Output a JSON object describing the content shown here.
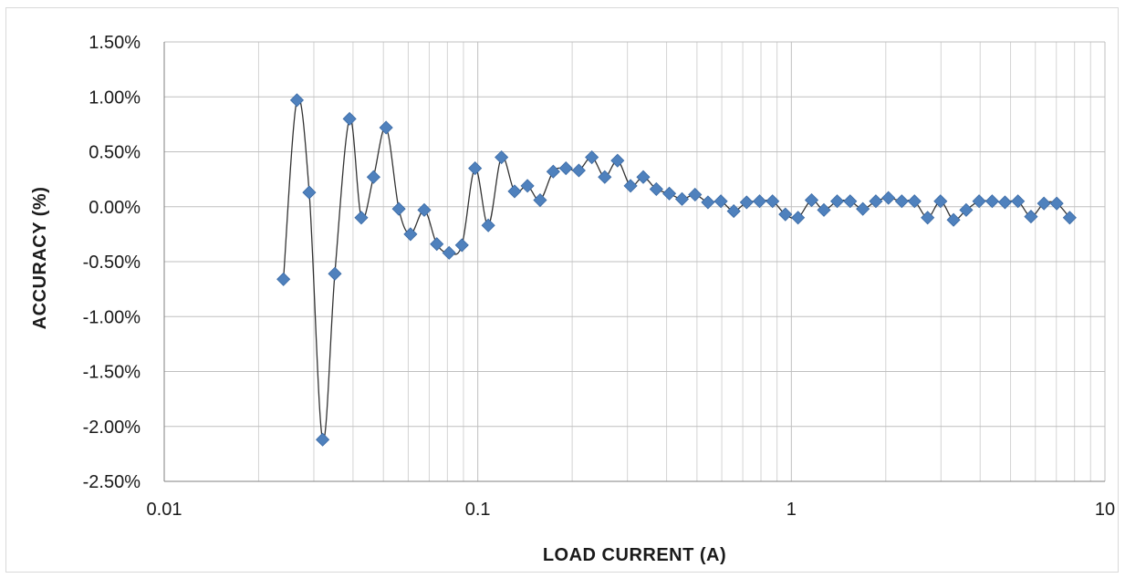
{
  "chart_data": {
    "type": "scatter",
    "xlabel": "LOAD CURRENT (A)",
    "ylabel": "ACCURACY (%)",
    "x_scale": "log",
    "xlim": [
      0.01,
      10
    ],
    "ylim": [
      -2.5,
      1.5
    ],
    "x_ticks": [
      0.01,
      0.1,
      1,
      10
    ],
    "x_tick_labels": [
      "0.01",
      "0.1",
      "1",
      "10"
    ],
    "y_ticks": [
      1.5,
      1.0,
      0.5,
      0.0,
      -0.5,
      -1.0,
      -1.5,
      -2.0,
      -2.5
    ],
    "y_tick_labels": [
      "1.50%",
      "1.00%",
      "0.50%",
      "0.00%",
      "-0.50%",
      "-1.00%",
      "-1.50%",
      "-2.00%",
      "-2.50%"
    ],
    "grid": true,
    "legend": "none",
    "series_color": "#4f81bd",
    "line_color": "#333333",
    "series": [
      {
        "x": [
          0.024,
          0.0265,
          0.029,
          0.032,
          0.035,
          0.039,
          0.0425,
          0.0465,
          0.051,
          0.056,
          0.061,
          0.0675,
          0.074,
          0.081,
          0.089,
          0.098,
          0.108,
          0.119,
          0.131,
          0.144,
          0.158,
          0.174,
          0.191,
          0.21,
          0.231,
          0.254,
          0.279,
          0.307,
          0.337,
          0.371,
          0.408,
          0.448,
          0.493,
          0.542,
          0.596,
          0.655,
          0.72,
          0.792,
          0.871,
          0.957,
          1.05,
          1.16,
          1.27,
          1.4,
          1.54,
          1.69,
          1.86,
          2.04,
          2.25,
          2.47,
          2.72,
          2.99,
          3.29,
          3.61,
          3.97,
          4.37,
          4.8,
          5.28,
          5.81,
          6.39,
          7.02,
          7.72
        ],
        "y": [
          -0.66,
          0.97,
          0.13,
          -2.12,
          -0.61,
          0.8,
          -0.1,
          0.27,
          0.72,
          -0.02,
          -0.25,
          -0.03,
          -0.34,
          -0.42,
          -0.35,
          0.35,
          -0.17,
          0.45,
          0.14,
          0.19,
          0.06,
          0.32,
          0.35,
          0.33,
          0.45,
          0.27,
          0.42,
          0.19,
          0.27,
          0.16,
          0.12,
          0.07,
          0.11,
          0.04,
          0.05,
          -0.04,
          0.04,
          0.05,
          0.05,
          -0.07,
          -0.1,
          0.06,
          -0.03,
          0.05,
          0.05,
          -0.02,
          0.05,
          0.08,
          0.05,
          0.05,
          -0.1,
          0.05,
          -0.12,
          -0.03,
          0.05,
          0.05,
          0.04,
          0.05,
          -0.09,
          0.03,
          0.03,
          -0.1
        ]
      }
    ]
  }
}
